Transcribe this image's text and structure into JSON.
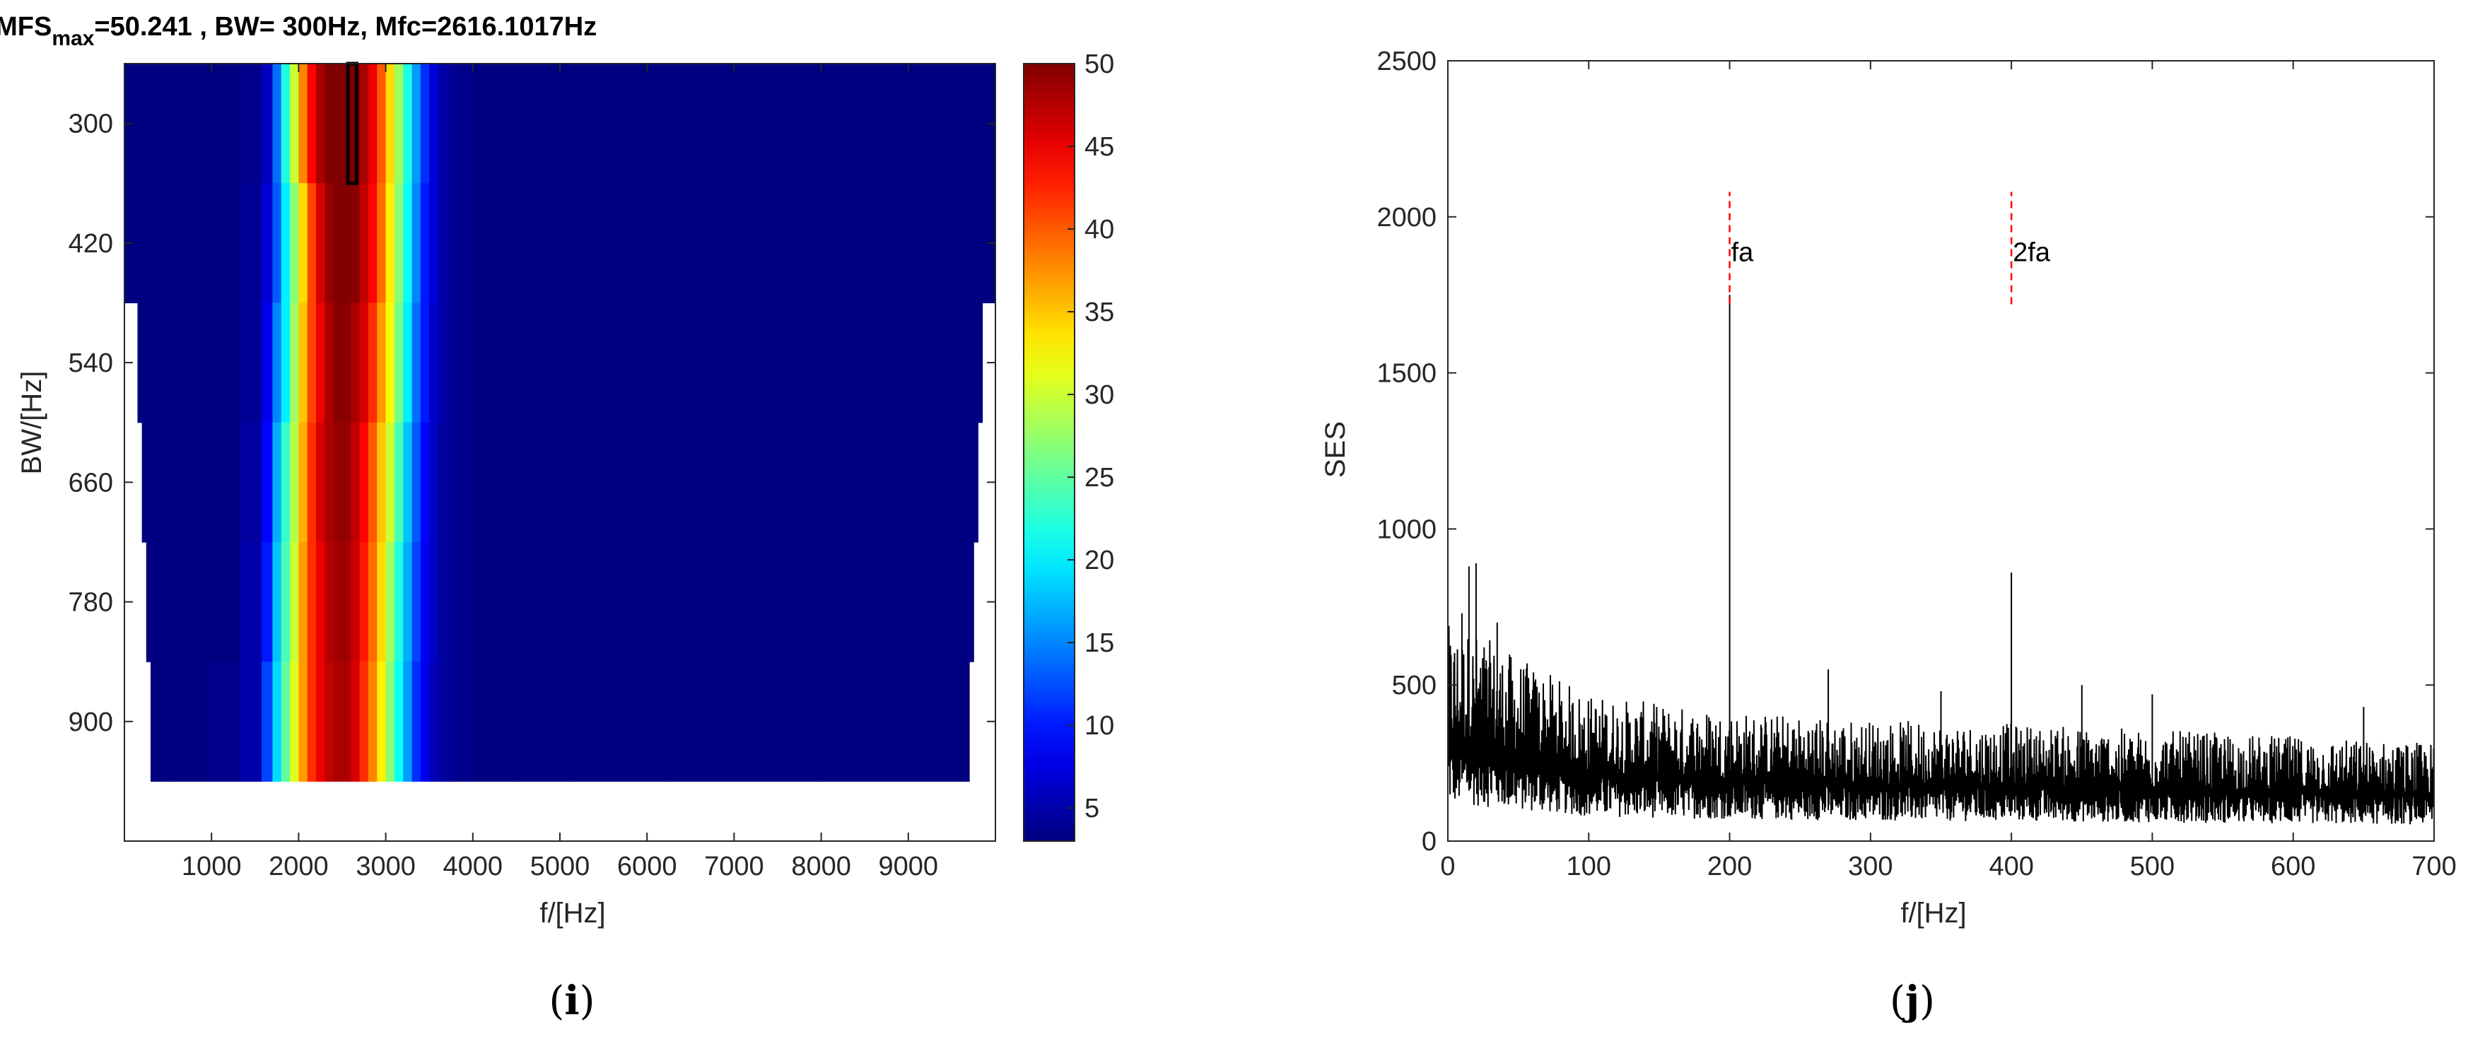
{
  "chart_data": [
    {
      "type": "heatmap",
      "panel_label": "i",
      "title": {
        "part1": "PMFS",
        "subscript": "max",
        "part2": "=50.241 , BW= 300Hz, Mfc=2616.1017Hz"
      },
      "xlabel": "f/[Hz]",
      "ylabel": "BW/[Hz]",
      "xlim": [
        0,
        10000
      ],
      "ylim": [
        1020,
        240
      ],
      "xticks": [
        "1000",
        "2000",
        "3000",
        "4000",
        "5000",
        "6000",
        "7000",
        "8000",
        "9000"
      ],
      "yticks": [
        "300",
        "420",
        "540",
        "660",
        "780",
        "900"
      ],
      "colorbar": {
        "range": [
          3,
          50
        ],
        "ticks": [
          "5",
          "10",
          "15",
          "20",
          "25",
          "30",
          "35",
          "40",
          "45",
          "50"
        ],
        "colormap": "jet"
      },
      "bw_rows": [
        300,
        420,
        540,
        660,
        780,
        900
      ],
      "row_extent_hz": [
        [
          0,
          10000
        ],
        [
          0,
          10000
        ],
        [
          150,
          9850
        ],
        [
          200,
          9800
        ],
        [
          250,
          9750
        ],
        [
          300,
          9700
        ]
      ],
      "center_freqs_hz": [
        250,
        750,
        1150,
        1500,
        1650,
        1750,
        1850,
        1950,
        2050,
        2150,
        2250,
        2350,
        2450,
        2550,
        2650,
        2750,
        2850,
        2950,
        3050,
        3150,
        3250,
        3350,
        3450,
        3550,
        3650,
        3750,
        3850,
        4200,
        4700,
        5500,
        7000,
        9000
      ],
      "pmfs_values": [
        [
          3,
          3,
          3,
          3.5,
          6,
          14,
          22,
          30,
          38,
          44,
          48,
          50,
          50.2,
          50.241,
          50,
          48,
          45,
          40,
          34,
          28,
          22,
          16,
          11,
          7,
          5,
          4,
          3.5,
          3,
          3,
          3,
          3,
          3
        ],
        [
          3,
          3,
          3,
          4,
          7,
          13,
          20,
          27,
          34,
          41,
          46,
          49,
          50,
          50,
          49.5,
          47,
          44,
          39,
          33,
          27,
          21,
          15,
          10,
          7,
          5,
          4,
          3.5,
          3,
          3,
          3,
          3,
          3
        ],
        [
          3,
          3,
          3,
          4,
          8,
          15,
          20,
          28,
          35,
          41,
          45,
          48,
          49.5,
          49.5,
          48,
          46,
          42,
          37,
          32,
          26,
          20,
          14,
          10,
          6.5,
          5,
          4,
          3.5,
          3,
          3,
          3,
          3,
          3
        ],
        [
          3,
          3,
          3,
          4.5,
          9,
          17,
          23,
          29,
          36,
          42,
          46,
          48,
          49,
          49,
          47,
          44,
          40,
          35,
          30,
          24,
          18,
          13,
          9,
          6,
          4.5,
          4,
          3.5,
          3,
          3,
          3,
          3,
          3
        ],
        [
          3,
          3,
          3,
          5,
          10,
          18,
          24,
          30,
          37,
          42,
          45,
          47.5,
          48.5,
          48.5,
          46.5,
          43,
          39,
          34,
          28,
          22,
          17,
          12,
          8.5,
          6,
          4.5,
          4,
          3.5,
          3,
          3,
          3,
          3,
          3
        ],
        [
          3,
          3,
          3.5,
          5,
          12,
          19,
          25,
          31,
          37,
          42,
          45,
          47,
          48,
          48,
          46,
          42,
          38,
          33,
          27,
          21,
          16,
          11,
          8,
          5.5,
          4.5,
          4,
          3.5,
          3,
          3,
          3,
          3,
          3
        ]
      ],
      "highlight": {
        "freq_hz": 2616.1017,
        "bw_hz": 300
      }
    },
    {
      "type": "line",
      "panel_label": "j",
      "title": "",
      "xlabel": "f/[Hz]",
      "ylabel": "SES",
      "xlim": [
        0,
        700
      ],
      "ylim": [
        0,
        2500
      ],
      "xticks": [
        "0",
        "100",
        "200",
        "300",
        "400",
        "500",
        "600",
        "700"
      ],
      "yticks": [
        "0",
        "500",
        "1000",
        "1500",
        "2000",
        "2500"
      ],
      "grid": false,
      "series": [
        {
          "color": "#000000",
          "trend_points": [
            {
              "x": 0,
              "y": 330
            },
            {
              "x": 20,
              "y": 320
            },
            {
              "x": 50,
              "y": 280
            },
            {
              "x": 100,
              "y": 225
            },
            {
              "x": 150,
              "y": 210
            },
            {
              "x": 200,
              "y": 200
            },
            {
              "x": 300,
              "y": 185
            },
            {
              "x": 400,
              "y": 180
            },
            {
              "x": 500,
              "y": 170
            },
            {
              "x": 600,
              "y": 160
            },
            {
              "x": 700,
              "y": 150
            }
          ],
          "notable_peaks": [
            {
              "x": 10,
              "y": 730
            },
            {
              "x": 15,
              "y": 880
            },
            {
              "x": 20,
              "y": 890
            },
            {
              "x": 35,
              "y": 700
            },
            {
              "x": 200,
              "y": 1750
            },
            {
              "x": 270,
              "y": 550
            },
            {
              "x": 350,
              "y": 480
            },
            {
              "x": 400,
              "y": 860
            },
            {
              "x": 450,
              "y": 500
            },
            {
              "x": 500,
              "y": 470
            },
            {
              "x": 650,
              "y": 430
            }
          ]
        }
      ],
      "annotations": [
        {
          "label": "fa",
          "x": 200,
          "y_from": 1720,
          "y_to": 2080,
          "color": "#ff0000"
        },
        {
          "label": "2fa",
          "x": 400,
          "y_from": 1720,
          "y_to": 2080,
          "color": "#ff0000"
        }
      ]
    }
  ]
}
